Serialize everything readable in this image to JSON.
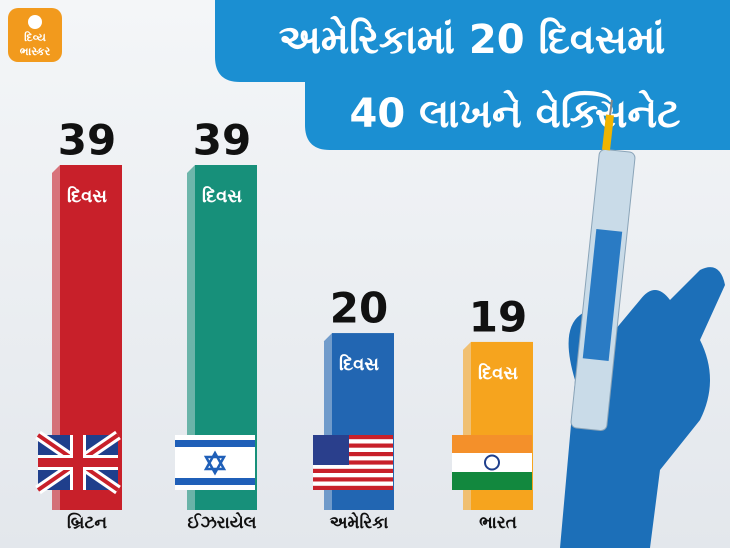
{
  "chart_data": {
    "type": "bar",
    "title_lines": [
      "અમેરિકામાં 20 દિવસમાં",
      "40 લાખને વેક્સિનેટ"
    ],
    "logo": [
      "દિવ્ય",
      "ભાસ્કર"
    ],
    "unit_label": "દિવસ",
    "categories": [
      "બ્રિટન",
      "ઈઝરાયેલ",
      "અમેરિકા",
      "ભારત"
    ],
    "values": [
      39,
      39,
      20,
      19
    ],
    "colors": [
      "#c8202a",
      "#17907a",
      "#2266b2",
      "#f6a41e"
    ]
  }
}
